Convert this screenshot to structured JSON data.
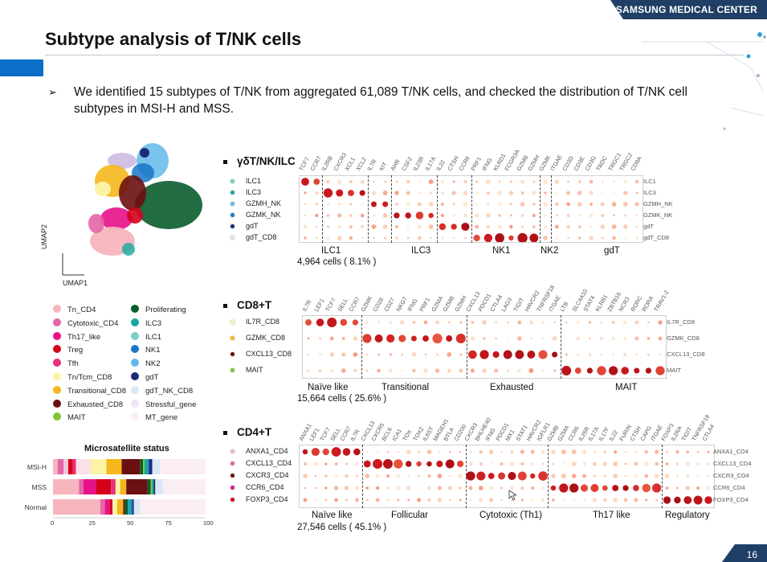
{
  "header": {
    "org": "SAMSUNG MEDICAL CENTER",
    "band_color": "#1f3f66"
  },
  "title": "Subtype analysis of T/NK cells",
  "bullet": {
    "arrow": "➢",
    "text": "We identified 15 subtypes of T/NK from aggregated 61,089 T/NK cells, and checked the distribution of T/NK cell subtypes in MSI-H and MSS."
  },
  "umap": {
    "xlabel": "UMAP1",
    "ylabel": "UMAP2"
  },
  "legend": {
    "left": [
      {
        "label": "Tn_CD4",
        "color": "#f7b5bd"
      },
      {
        "label": "Cytotoxic_CD4",
        "color": "#e565a6"
      },
      {
        "label": "Th17_like",
        "color": "#e7118a"
      },
      {
        "label": "Treg",
        "color": "#d6001c"
      },
      {
        "label": "Tfh",
        "color": "#e8307a"
      },
      {
        "label": "Tn/Tcm_CD8",
        "color": "#fbf4a4"
      },
      {
        "label": "Transitional_CD8",
        "color": "#f5b71c"
      },
      {
        "label": "Exhausted_CD8",
        "color": "#6b1010"
      },
      {
        "label": "MAIT",
        "color": "#7dc631"
      }
    ],
    "right": [
      {
        "label": "Proliferating",
        "color": "#0a5c2c"
      },
      {
        "label": "ILC3",
        "color": "#16a89e"
      },
      {
        "label": "ILC1",
        "color": "#79d0c6"
      },
      {
        "label": "NK1",
        "color": "#1a76c8"
      },
      {
        "label": "NK2",
        "color": "#63b8ea"
      },
      {
        "label": "gdT",
        "color": "#1c2a78"
      },
      {
        "label": "gdT_NK_CD8",
        "color": "#d8e8f5"
      },
      {
        "label": "Stressful_gene",
        "color": "#efe6f3"
      },
      {
        "label": "MT_gene",
        "color": "#fbeef2"
      }
    ]
  },
  "msi": {
    "title": "Microsatellite status",
    "rows": [
      {
        "label": "MSI-H",
        "segments": [
          {
            "v": 3,
            "c": "#f7b5bd"
          },
          {
            "v": 4,
            "c": "#e565a6"
          },
          {
            "v": 3,
            "c": "#f2c6d6"
          },
          {
            "v": 3,
            "c": "#d6001c"
          },
          {
            "v": 2,
            "c": "#e8307a"
          },
          {
            "v": 10,
            "c": "#fbe0e6"
          },
          {
            "v": 10,
            "c": "#fbf4a4"
          },
          {
            "v": 10,
            "c": "#f5b71c"
          },
          {
            "v": 12,
            "c": "#6b1010"
          },
          {
            "v": 2,
            "c": "#0a5c2c"
          },
          {
            "v": 1,
            "c": "#7dc631"
          },
          {
            "v": 2,
            "c": "#16a89e"
          },
          {
            "v": 1,
            "c": "#1a76c8"
          },
          {
            "v": 2,
            "c": "#1c2a78"
          },
          {
            "v": 5,
            "c": "#d8e8f5"
          },
          {
            "v": 30,
            "c": "#fbeef2"
          }
        ]
      },
      {
        "label": "MSS",
        "segments": [
          {
            "v": 17,
            "c": "#f7b5bd"
          },
          {
            "v": 3,
            "c": "#e565a6"
          },
          {
            "v": 8,
            "c": "#e7118a"
          },
          {
            "v": 10,
            "c": "#d6001c"
          },
          {
            "v": 3,
            "c": "#e8307a"
          },
          {
            "v": 3,
            "c": "#fbf4a4"
          },
          {
            "v": 4,
            "c": "#f5b71c"
          },
          {
            "v": 14,
            "c": "#6b1010"
          },
          {
            "v": 2,
            "c": "#0a5c2c"
          },
          {
            "v": 1,
            "c": "#7dc631"
          },
          {
            "v": 1,
            "c": "#16a89e"
          },
          {
            "v": 1,
            "c": "#1c2a78"
          },
          {
            "v": 5,
            "c": "#d8e8f5"
          },
          {
            "v": 28,
            "c": "#fbeef2"
          }
        ]
      },
      {
        "label": "Normal",
        "segments": [
          {
            "v": 31,
            "c": "#f7b5bd"
          },
          {
            "v": 3,
            "c": "#e565a6"
          },
          {
            "v": 3,
            "c": "#e7118a"
          },
          {
            "v": 2,
            "c": "#d6001c"
          },
          {
            "v": 3,
            "c": "#fbf4a4"
          },
          {
            "v": 4,
            "c": "#f5b71c"
          },
          {
            "v": 1,
            "c": "#6b1010"
          },
          {
            "v": 2,
            "c": "#0a5c2c"
          },
          {
            "v": 2,
            "c": "#16a89e"
          },
          {
            "v": 1,
            "c": "#1a76c8"
          },
          {
            "v": 1,
            "c": "#1c2a78"
          },
          {
            "v": 4,
            "c": "#d8e8f5"
          },
          {
            "v": 43,
            "c": "#fbeef2"
          }
        ]
      }
    ],
    "ticks": [
      "0",
      "25",
      "50",
      "75",
      "100"
    ]
  },
  "panels": [
    {
      "title": "γδT/NK/ILC",
      "rows": [
        {
          "label": "ILC1",
          "color": "#79d0c6"
        },
        {
          "label": "ILC3",
          "color": "#16a89e"
        },
        {
          "label": "GZMH_NK",
          "color": "#63b8ea"
        },
        {
          "label": "GZMK_NK",
          "color": "#1a76c8"
        },
        {
          "label": "gdT",
          "color": "#1c2a78"
        },
        {
          "label": "gdT_CD8",
          "color": "#e6e6e6"
        }
      ],
      "genes": [
        "TCF7",
        "CCR7",
        "IL2RB",
        "CXCR3",
        "XCL1",
        "XCL2",
        "IL7R",
        "KIT",
        "AHR",
        "CSF2",
        "IL23R",
        "IL17A",
        "IL22",
        "CTSH",
        "CCR6",
        "PRF1",
        "IFNG",
        "KLRD1",
        "FCGR3A",
        "GZMB",
        "GZMH",
        "GZMK",
        "ITGAE",
        "CD3D",
        "CD3E",
        "CD3G",
        "TRDC",
        "TRGC1",
        "TRGC2",
        "CD8A"
      ],
      "groups": [
        "ILC1",
        "ILC3",
        "NK1",
        "NK2",
        "gdT"
      ],
      "count": "4,964 cells ( 8.1% )"
    },
    {
      "title": "CD8+T",
      "rows": [
        {
          "label": "IL7R_CD8",
          "color": "#fbf4a4"
        },
        {
          "label": "GZMK_CD8",
          "color": "#f5b71c"
        },
        {
          "label": "CXCL13_CD8",
          "color": "#6b1010"
        },
        {
          "label": "MAIT",
          "color": "#7dc631"
        }
      ],
      "genes": [
        "IL7R",
        "LEF1",
        "TCF7",
        "SELL",
        "CCR7",
        "GZMK",
        "CD28",
        "CD27",
        "NKG7",
        "IFNG",
        "PRF1",
        "GZMA",
        "GZMB",
        "GZMH",
        "CXCL13",
        "PDCD1",
        "CTLA4",
        "LAG3",
        "TIGIT",
        "HAVCR2",
        "TNFRSF18",
        "ITGAE",
        "LTB",
        "SLC4A10",
        "STAT4",
        "KLRB1",
        "ZBTB16",
        "NCR3",
        "RORC",
        "RORA",
        "TRAV1-2"
      ],
      "groups": [
        "Naïve like",
        "Transitional",
        "Exhausted",
        "MAIT"
      ],
      "count": "15,664 cells ( 25.6% )"
    },
    {
      "title": "CD4+T",
      "rows": [
        {
          "label": "ANXA1_CD4",
          "color": "#f7b5bd"
        },
        {
          "label": "CXCL13_CD4",
          "color": "#e565a6"
        },
        {
          "label": "CXCR3_CD4",
          "color": "#6b1010"
        },
        {
          "label": "CCR6_CD4",
          "color": "#e7118a"
        },
        {
          "label": "FOXP3_CD4",
          "color": "#d6001c"
        }
      ],
      "genes": [
        "ANXA1",
        "LEF1",
        "TCF7",
        "SELL",
        "CCR7",
        "IL7R",
        "CXCL13",
        "CXCR5",
        "BCL6",
        "ICA1",
        "TOX",
        "TOX2",
        "IL6ST",
        "MAGEH1",
        "BTLA",
        "CD200",
        "CXCR3",
        "BHLHE40",
        "IFNG",
        "PDCD1",
        "MX1",
        "STAT1",
        "HAVCR2",
        "IGFLR1",
        "GZMB",
        "GZMA",
        "CCR6",
        "IL26R",
        "IL17A",
        "IL17F",
        "IL22",
        "FURIN",
        "CTSH",
        "CAPG",
        "ITGAE",
        "FOXP3",
        "IL2RA",
        "TIGIT",
        "TNFRSF18",
        "CTLA4"
      ],
      "groups": [
        "Naïve like",
        "Follicular",
        "Cytotoxic (Th1)",
        "Th17 like",
        "Regulatory"
      ],
      "count": "27,546 cells ( 45.1% )"
    }
  ],
  "page_number": "16"
}
